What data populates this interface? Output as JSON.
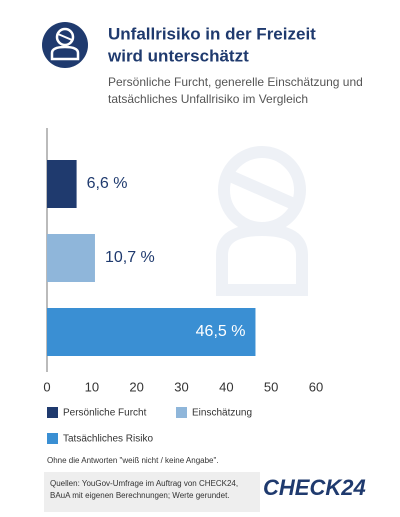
{
  "chart_data": {
    "type": "bar",
    "orientation": "horizontal",
    "title": [
      "Unfallrisiko in der Freizeit",
      "wird unterschätzt"
    ],
    "subtitle": [
      "Persönliche Furcht, generelle Einschätzung und",
      "tatsächliches Unfallrisiko im Vergleich"
    ],
    "categories": [
      null
    ],
    "series": [
      {
        "name": "Persönliche Furcht",
        "color": "#1f3a6e",
        "values": [
          6.6
        ],
        "value_labels": [
          "6,6 %"
        ]
      },
      {
        "name": "Einschätzung",
        "color": "#8fb6da",
        "values": [
          10.7
        ],
        "value_labels": [
          "10,7 %"
        ]
      },
      {
        "name": "Tatsächliches Risiko",
        "color": "#3a8fd3",
        "values": [
          46.5
        ],
        "value_labels": [
          "46,5 %"
        ]
      }
    ],
    "xlim": [
      0,
      60
    ],
    "xticks": [
      0,
      10,
      20,
      30,
      40,
      50,
      60
    ],
    "grid": false,
    "note": "Ohne die Antworten \"weiß nicht / keine Angabe\".",
    "source": [
      "Quellen: YouGov-Umfrage im Auftrag von CHECK24,",
      "BAuA mit eigenen Berechnungen; Werte gerundet."
    ],
    "logo": "CHECK24"
  }
}
